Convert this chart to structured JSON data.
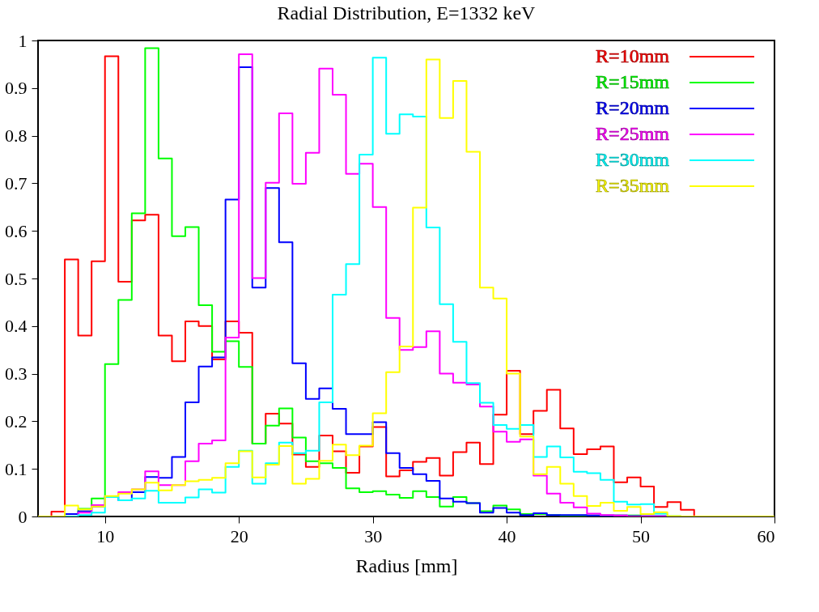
{
  "chart_data": {
    "type": "histogram",
    "title": "Radial Distribution, E=1332 keV",
    "xlabel": "Radius [mm]",
    "bins": [
      5,
      6,
      7,
      8,
      9,
      10,
      11,
      12,
      13,
      14,
      15,
      16,
      17,
      18,
      19,
      20,
      21,
      22,
      23,
      24,
      25,
      26,
      27,
      28,
      29,
      30,
      31,
      32,
      33,
      34,
      35,
      36,
      37,
      38,
      39,
      40,
      41,
      42,
      43,
      44,
      45,
      46,
      47,
      48,
      49,
      50,
      51,
      52,
      53,
      54,
      55,
      56,
      57,
      58,
      59,
      60
    ],
    "series": [
      {
        "name": "R=10mm",
        "color": "#ff0000",
        "values": [
          0,
          0.01,
          0.54,
          0.38,
          0.536,
          0.967,
          0.493,
          0.622,
          0.634,
          0.38,
          0.326,
          0.41,
          0.4,
          0.33,
          0.41,
          0.386,
          0.153,
          0.216,
          0.195,
          0.13,
          0.104,
          0.17,
          0.137,
          0.092,
          0.147,
          0.188,
          0.084,
          0.097,
          0.115,
          0.123,
          0.086,
          0.135,
          0.155,
          0.11,
          0.214,
          0.306,
          0.173,
          0.222,
          0.266,
          0.185,
          0.131,
          0.141,
          0.147,
          0.072,
          0.082,
          0.063,
          0.02,
          0.03,
          0.014,
          0,
          0,
          0,
          0,
          0,
          0
        ]
      },
      {
        "name": "R=15mm",
        "color": "#00ff00",
        "values": [
          0,
          0,
          0.005,
          0.016,
          0.038,
          0.32,
          0.455,
          0.637,
          0.984,
          0.752,
          0.589,
          0.608,
          0.444,
          0.346,
          0.368,
          0.314,
          0.153,
          0.191,
          0.227,
          0.166,
          0.116,
          0.112,
          0.102,
          0.059,
          0.051,
          0.053,
          0.046,
          0.039,
          0.053,
          0.041,
          0.021,
          0.041,
          0.028,
          0.011,
          0.023,
          0.015,
          0.005,
          0.005,
          0.003,
          0.002,
          0.002,
          0.002,
          0.002,
          0.002,
          0.002,
          0,
          0,
          0,
          0,
          0,
          0,
          0,
          0,
          0,
          0
        ]
      },
      {
        "name": "R=20mm",
        "color": "#0000ff",
        "values": [
          0,
          0,
          0.005,
          0.011,
          0.021,
          0.041,
          0.034,
          0.051,
          0.083,
          0.081,
          0.125,
          0.24,
          0.315,
          0.334,
          0.666,
          0.944,
          0.481,
          0.69,
          0.576,
          0.322,
          0.247,
          0.269,
          0.226,
          0.173,
          0.173,
          0.198,
          0.133,
          0.102,
          0.089,
          0.075,
          0.038,
          0.031,
          0.028,
          0.008,
          0.018,
          0.008,
          0.003,
          0.007,
          0.003,
          0.003,
          0.003,
          0.002,
          0.002,
          0.002,
          0.001,
          0.001,
          0.001,
          0,
          0,
          0,
          0,
          0,
          0,
          0,
          0
        ]
      },
      {
        "name": "R=25mm",
        "color": "#ff00ff",
        "values": [
          0,
          0,
          0,
          0.008,
          0.024,
          0.042,
          0.051,
          0.057,
          0.095,
          0.066,
          0.066,
          0.116,
          0.153,
          0.16,
          0.376,
          0.971,
          0.501,
          0.701,
          0.847,
          0.699,
          0.764,
          0.941,
          0.886,
          0.72,
          0.741,
          0.65,
          0.417,
          0.35,
          0.356,
          0.389,
          0.3,
          0.281,
          0.277,
          0.231,
          0.178,
          0.157,
          0.162,
          0.086,
          0.048,
          0.029,
          0.019,
          0.006,
          0.003,
          0.002,
          0,
          0,
          0,
          0,
          0,
          0,
          0,
          0,
          0,
          0,
          0
        ]
      },
      {
        "name": "R=30mm",
        "color": "#00ffff",
        "values": [
          0,
          0,
          0,
          0.003,
          0.008,
          0.041,
          0.034,
          0.038,
          0.054,
          0.029,
          0.029,
          0.04,
          0.057,
          0.05,
          0.104,
          0.138,
          0.069,
          0.112,
          0.155,
          0.133,
          0.138,
          0.24,
          0.466,
          0.53,
          0.76,
          0.964,
          0.804,
          0.845,
          0.84,
          0.607,
          0.446,
          0.367,
          0.28,
          0.239,
          0.192,
          0.184,
          0.192,
          0.125,
          0.147,
          0.124,
          0.094,
          0.091,
          0.077,
          0.031,
          0.025,
          0.026,
          0.006,
          0.001,
          0,
          0,
          0,
          0,
          0,
          0,
          0
        ]
      },
      {
        "name": "R=35mm",
        "color": "#ffff00",
        "values": [
          0,
          0,
          0.023,
          0.015,
          0.021,
          0.043,
          0.048,
          0.057,
          0.071,
          0.055,
          0.066,
          0.074,
          0.077,
          0.081,
          0.112,
          0.137,
          0.082,
          0.109,
          0.148,
          0.069,
          0.079,
          0.117,
          0.151,
          0.129,
          0.149,
          0.217,
          0.303,
          0.357,
          0.649,
          0.96,
          0.837,
          0.915,
          0.766,
          0.481,
          0.458,
          0.3,
          0.168,
          0.089,
          0.104,
          0.069,
          0.043,
          0.022,
          0.029,
          0.012,
          0.02,
          0.005,
          0.009,
          0.001,
          0,
          0,
          0,
          0,
          0,
          0,
          0
        ]
      }
    ],
    "xlim": [
      5,
      60
    ],
    "xticks": [
      10,
      20,
      30,
      40,
      50,
      60
    ],
    "ylim": [
      0,
      1
    ],
    "yticks": [
      0,
      0.1,
      0.2,
      0.3,
      0.4,
      0.5,
      0.6,
      0.7,
      0.8,
      0.9,
      1
    ],
    "grid": false,
    "legend": "top right"
  }
}
